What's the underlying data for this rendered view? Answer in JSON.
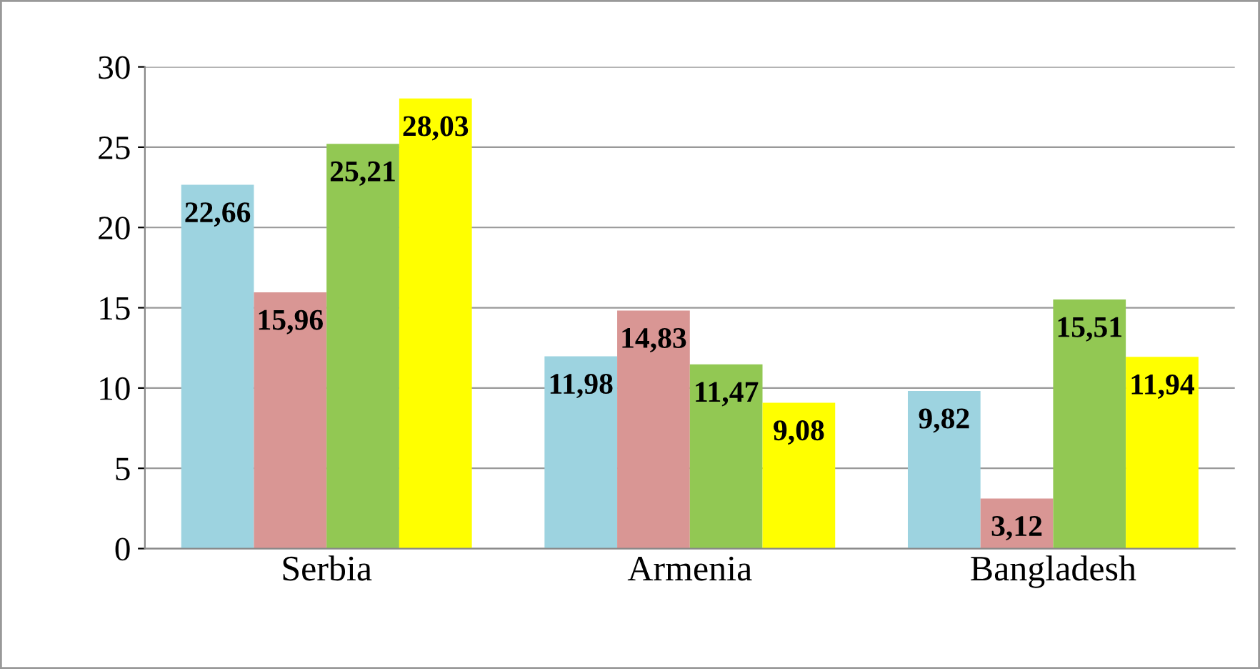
{
  "chart_data": {
    "type": "bar",
    "categories": [
      "Serbia",
      "Armenia",
      "Bangladesh"
    ],
    "series": [
      {
        "color": "#9dd3e0",
        "values": [
          22.66,
          11.98,
          9.82
        ],
        "value_labels": [
          "22,66",
          "11,98",
          "9,82"
        ]
      },
      {
        "color": "#d99694",
        "values": [
          15.96,
          14.83,
          3.12
        ],
        "value_labels": [
          "15,96",
          "14,83",
          "3,12"
        ]
      },
      {
        "color": "#92c853",
        "values": [
          25.21,
          11.47,
          15.51
        ],
        "value_labels": [
          "25,21",
          "11,47",
          "15,51"
        ]
      },
      {
        "color": "#ffff00",
        "values": [
          28.03,
          9.08,
          11.94
        ],
        "value_labels": [
          "28,03",
          "9,08",
          "11,94"
        ]
      }
    ],
    "ylim": [
      0,
      30
    ],
    "yticks": [
      0,
      5,
      10,
      15,
      20,
      25,
      30
    ],
    "grid": "y"
  }
}
